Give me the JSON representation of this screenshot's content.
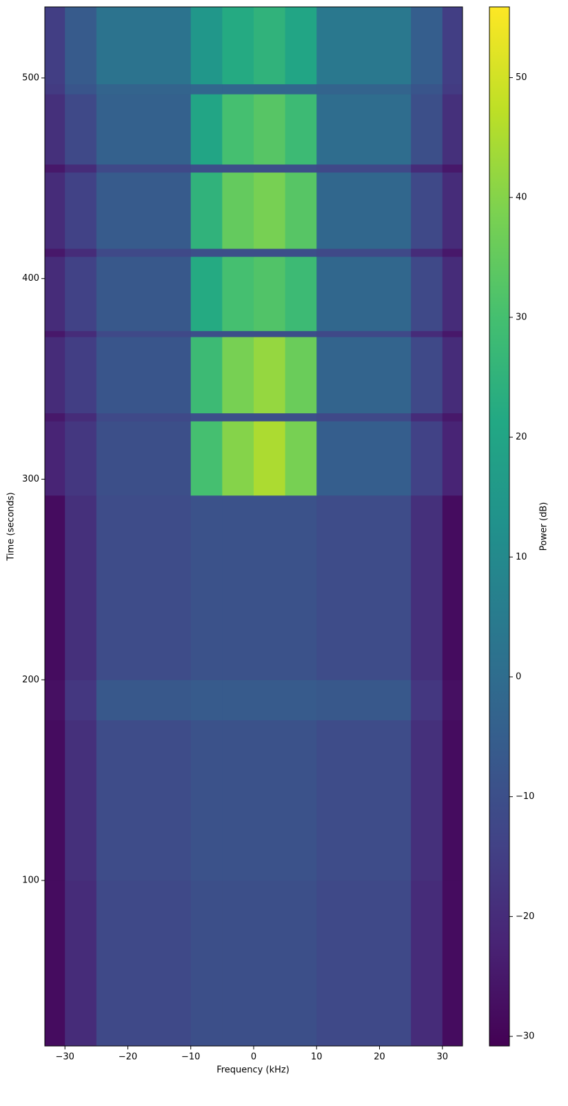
{
  "chart_data": {
    "type": "heatmap",
    "colormap": "viridis",
    "xlabel": "Frequency (kHz)",
    "ylabel": "Time (seconds)",
    "colorbar_label": "Power (dB)",
    "xlim": [
      -33.2,
      33.2
    ],
    "ylim": [
      17.5,
      535.4
    ],
    "clim": [
      -30.8,
      55.9
    ],
    "xticks": [
      {
        "value": -30,
        "label": "−30"
      },
      {
        "value": -20,
        "label": "−20"
      },
      {
        "value": -10,
        "label": "−10"
      },
      0,
      10,
      20,
      30
    ],
    "yticks": [
      100,
      200,
      300,
      400,
      500
    ],
    "cticks": [
      {
        "value": -30,
        "label": "−30"
      },
      {
        "value": -20,
        "label": "−20"
      },
      {
        "value": -10,
        "label": "−10"
      },
      0,
      10,
      20,
      30,
      40,
      50
    ],
    "x_edges": [
      -33.2,
      -30,
      -25,
      -10,
      -5,
      0,
      5,
      10,
      25,
      30,
      33.2
    ],
    "y_edges": [
      17.5,
      100,
      180,
      200,
      292,
      329,
      333,
      371,
      374,
      411,
      415,
      453,
      457,
      492,
      497,
      535.4
    ],
    "z": [
      [
        -28,
        -20,
        -12,
        -10,
        -10,
        -10,
        -10,
        -12,
        -20,
        -28
      ],
      [
        -28,
        -19,
        -11,
        -9,
        -9,
        -9,
        -9,
        -11,
        -19,
        -28
      ],
      [
        -27,
        -17,
        -7,
        -6,
        -6,
        -6,
        -6,
        -7,
        -17,
        -27
      ],
      [
        -28,
        -19,
        -11,
        -9,
        -9,
        -9,
        -9,
        -11,
        -19,
        -28
      ],
      [
        -22,
        -17,
        -10,
        30,
        40,
        45,
        38,
        -5,
        -14,
        -22
      ],
      [
        -25,
        -20,
        -12,
        -10,
        -10,
        -10,
        -10,
        -12,
        -20,
        -25
      ],
      [
        -20,
        -15,
        -8,
        28,
        38,
        42,
        36,
        -3,
        -12,
        -20
      ],
      [
        -25,
        -20,
        -12,
        -10,
        -10,
        -10,
        -10,
        -12,
        -20,
        -25
      ],
      [
        -20,
        -14,
        -7,
        22,
        30,
        32,
        28,
        -2,
        -12,
        -20
      ],
      [
        -25,
        -20,
        -12,
        -10,
        -10,
        -10,
        -10,
        -12,
        -20,
        -25
      ],
      [
        -20,
        -14,
        -6,
        25,
        35,
        38,
        33,
        -2,
        -12,
        -20
      ],
      [
        -25,
        -20,
        -12,
        -10,
        -10,
        -10,
        -10,
        -12,
        -20,
        -25
      ],
      [
        -19,
        -12,
        -4,
        20,
        30,
        33,
        28,
        0,
        -10,
        -19
      ],
      [
        -16,
        -8,
        -3,
        -2,
        -2,
        -2,
        -2,
        -3,
        -8,
        -16
      ],
      [
        -15,
        -6,
        2,
        15,
        22,
        25,
        20,
        4,
        -5,
        -15
      ]
    ]
  }
}
